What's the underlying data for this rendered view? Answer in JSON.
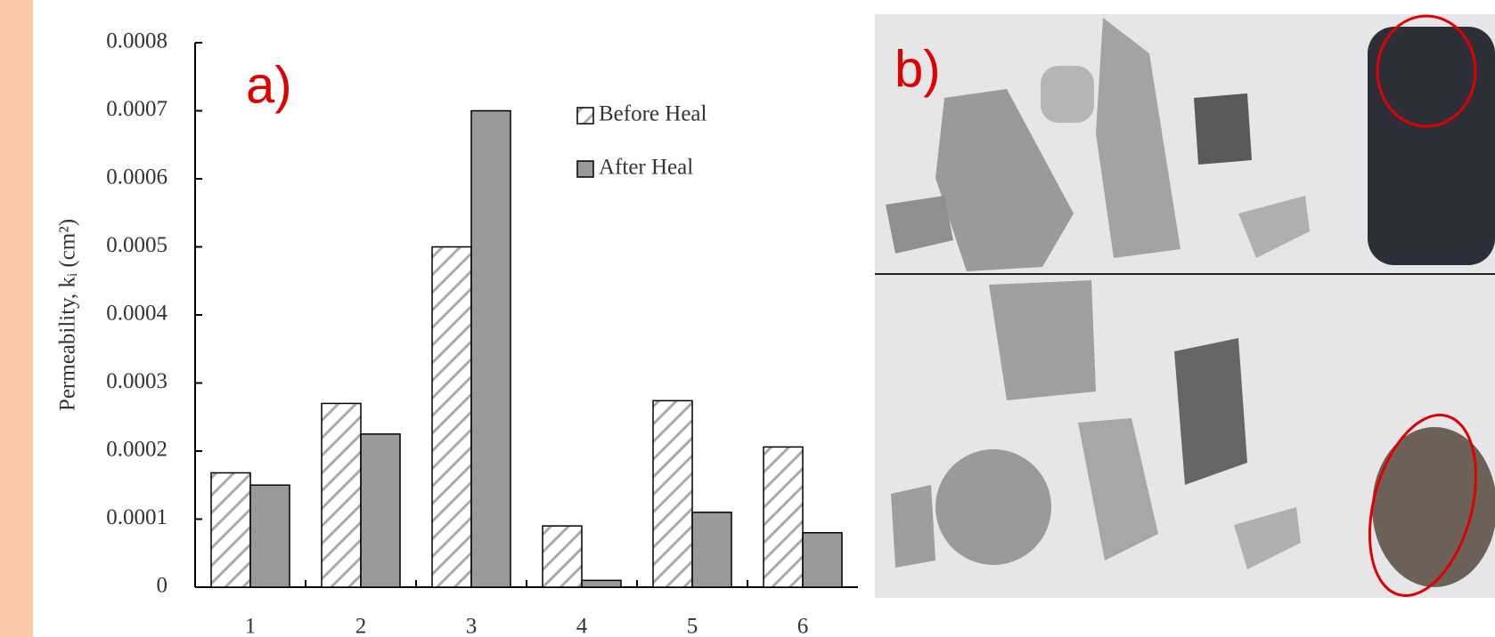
{
  "chart_data": {
    "type": "bar",
    "y_label": "Permeability, kᵢ (cm²)",
    "annotations": [
      "a)",
      "b)"
    ],
    "categories": [
      "1",
      "2",
      "3",
      "4",
      "5",
      "6"
    ],
    "series": [
      {
        "name": "Before Heal",
        "color": "#ffffff",
        "hatch": true,
        "values": [
          0.000168,
          0.00027,
          0.0005,
          9e-05,
          0.000274,
          0.000206
        ]
      },
      {
        "name": "After Heal",
        "color": "#999999",
        "hatch": false,
        "values": [
          0.00015,
          0.000225,
          0.0007,
          1e-05,
          0.00011,
          8e-05
        ]
      }
    ],
    "ylim": [
      0,
      0.0008
    ],
    "yticks": [
      0,
      0.0001,
      0.0002,
      0.0003,
      0.0004,
      0.0005,
      0.0006,
      0.0007,
      0.0008
    ],
    "grid": false
  }
}
